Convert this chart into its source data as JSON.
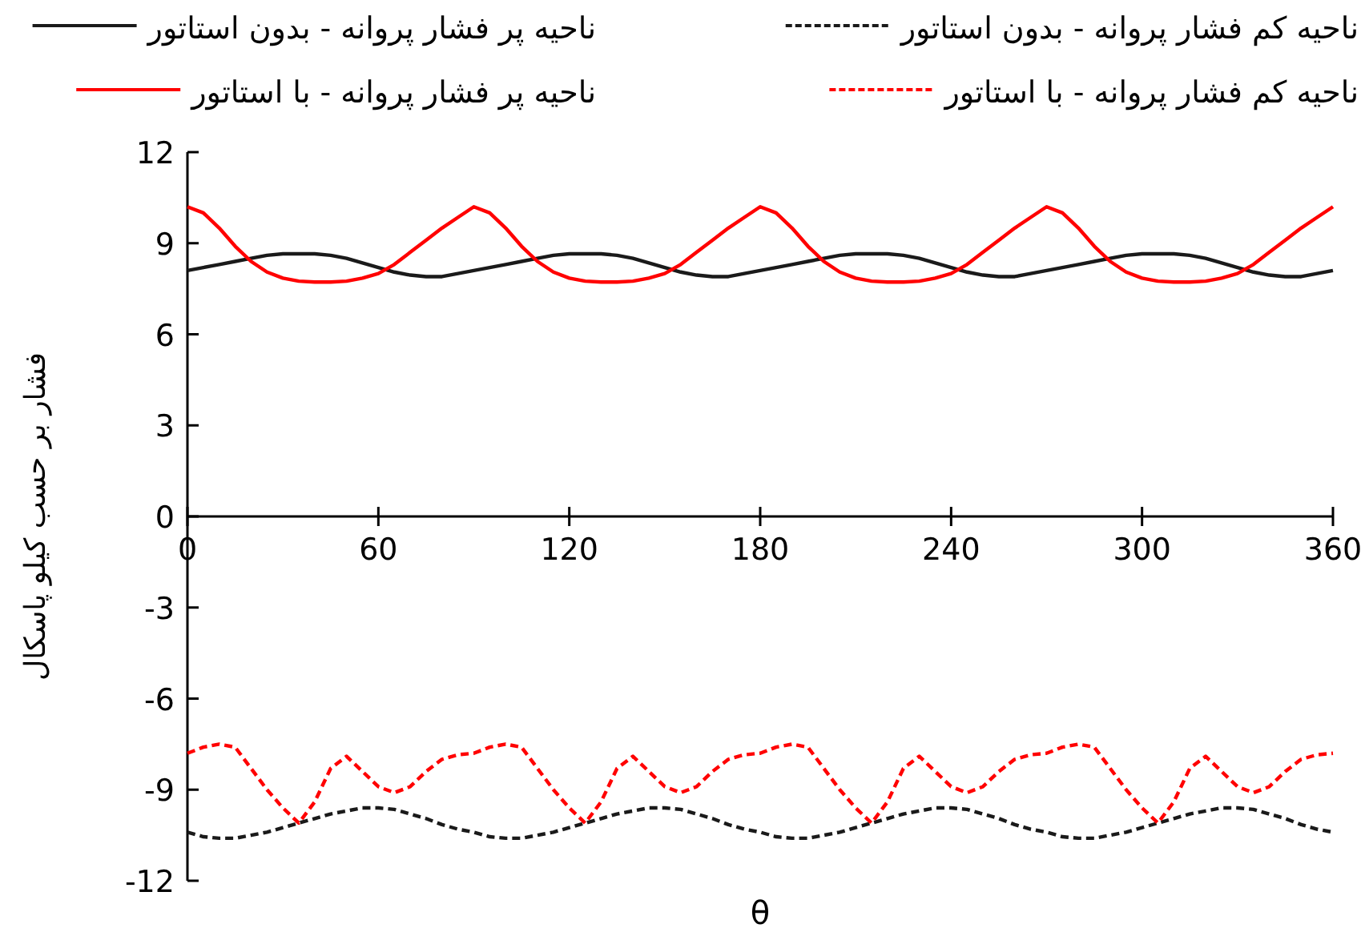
{
  "chart_data": {
    "type": "line",
    "xlabel": "θ",
    "ylabel": "فشار بر حسب کیلو پاسکال",
    "x": [
      0,
      5,
      10,
      15,
      20,
      25,
      30,
      35,
      40,
      45,
      50,
      55,
      60,
      65,
      70,
      75,
      80,
      85,
      90,
      95,
      100,
      105,
      110,
      115,
      120,
      125,
      130,
      135,
      140,
      145,
      150,
      155,
      160,
      165,
      170,
      175,
      180,
      185,
      190,
      195,
      200,
      205,
      210,
      215,
      220,
      225,
      230,
      235,
      240,
      245,
      250,
      255,
      260,
      265,
      270,
      275,
      280,
      285,
      290,
      295,
      300,
      305,
      310,
      315,
      320,
      325,
      330,
      335,
      340,
      345,
      350,
      355,
      360
    ],
    "series": [
      {
        "name": "ناحیه پر فشار پروانه - بدون استاتور",
        "color": "#1a1a1a",
        "line_style": "solid",
        "values": [
          8.1,
          8.2,
          8.3,
          8.4,
          8.5,
          8.6,
          8.65,
          8.65,
          8.65,
          8.6,
          8.5,
          8.35,
          8.2,
          8.05,
          7.95,
          7.9,
          7.9,
          8.0,
          8.1,
          8.2,
          8.3,
          8.4,
          8.5,
          8.6,
          8.65,
          8.65,
          8.65,
          8.6,
          8.5,
          8.35,
          8.2,
          8.05,
          7.95,
          7.9,
          7.9,
          8.0,
          8.1,
          8.2,
          8.3,
          8.4,
          8.5,
          8.6,
          8.65,
          8.65,
          8.65,
          8.6,
          8.5,
          8.35,
          8.2,
          8.05,
          7.95,
          7.9,
          7.9,
          8.0,
          8.1,
          8.2,
          8.3,
          8.4,
          8.5,
          8.6,
          8.65,
          8.65,
          8.65,
          8.6,
          8.5,
          8.35,
          8.2,
          8.05,
          7.95,
          7.9,
          7.9,
          8.0,
          8.1
        ]
      },
      {
        "name": "ناحیه کم فشار پروانه - بدون استاتور",
        "color": "#1a1a1a",
        "line_style": "dashed",
        "values": [
          -10.4,
          -10.55,
          -10.6,
          -10.6,
          -10.5,
          -10.4,
          -10.25,
          -10.1,
          -9.95,
          -9.8,
          -9.7,
          -9.6,
          -9.6,
          -9.65,
          -9.8,
          -9.95,
          -10.15,
          -10.3,
          -10.4,
          -10.55,
          -10.6,
          -10.6,
          -10.5,
          -10.4,
          -10.25,
          -10.1,
          -9.95,
          -9.8,
          -9.7,
          -9.6,
          -9.6,
          -9.65,
          -9.8,
          -9.95,
          -10.15,
          -10.3,
          -10.4,
          -10.55,
          -10.6,
          -10.6,
          -10.5,
          -10.4,
          -10.25,
          -10.1,
          -9.95,
          -9.8,
          -9.7,
          -9.6,
          -9.6,
          -9.65,
          -9.8,
          -9.95,
          -10.15,
          -10.3,
          -10.4,
          -10.55,
          -10.6,
          -10.6,
          -10.5,
          -10.4,
          -10.25,
          -10.1,
          -9.95,
          -9.8,
          -9.7,
          -9.6,
          -9.6,
          -9.65,
          -9.8,
          -9.95,
          -10.15,
          -10.3,
          -10.4
        ]
      },
      {
        "name": "ناحیه پر فشار پروانه - با استاتور",
        "color": "#ff0000",
        "line_style": "solid",
        "values": [
          10.2,
          10.0,
          9.5,
          8.9,
          8.4,
          8.05,
          7.85,
          7.75,
          7.72,
          7.72,
          7.75,
          7.85,
          8.0,
          8.3,
          8.7,
          9.1,
          9.5,
          9.85,
          10.2,
          10.0,
          9.5,
          8.9,
          8.4,
          8.05,
          7.85,
          7.75,
          7.72,
          7.72,
          7.75,
          7.85,
          8.0,
          8.3,
          8.7,
          9.1,
          9.5,
          9.85,
          10.2,
          10.0,
          9.5,
          8.9,
          8.4,
          8.05,
          7.85,
          7.75,
          7.72,
          7.72,
          7.75,
          7.85,
          8.0,
          8.3,
          8.7,
          9.1,
          9.5,
          9.85,
          10.2,
          10.0,
          9.5,
          8.9,
          8.4,
          8.05,
          7.85,
          7.75,
          7.72,
          7.72,
          7.75,
          7.85,
          8.0,
          8.3,
          8.7,
          9.1,
          9.5,
          9.85,
          10.2
        ]
      },
      {
        "name": "ناحیه کم فشار پروانه - با استاتور",
        "color": "#ff0000",
        "line_style": "dashed",
        "values": [
          -7.8,
          -7.6,
          -7.5,
          -7.6,
          -8.3,
          -9.0,
          -9.6,
          -10.1,
          -9.4,
          -8.3,
          -7.9,
          -8.4,
          -8.9,
          -9.1,
          -8.9,
          -8.4,
          -8.0,
          -7.85,
          -7.8,
          -7.6,
          -7.5,
          -7.6,
          -8.3,
          -9.0,
          -9.6,
          -10.1,
          -9.4,
          -8.3,
          -7.9,
          -8.4,
          -8.9,
          -9.1,
          -8.9,
          -8.4,
          -8.0,
          -7.85,
          -7.8,
          -7.6,
          -7.5,
          -7.6,
          -8.3,
          -9.0,
          -9.6,
          -10.1,
          -9.4,
          -8.3,
          -7.9,
          -8.4,
          -8.9,
          -9.1,
          -8.9,
          -8.4,
          -8.0,
          -7.85,
          -7.8,
          -7.6,
          -7.5,
          -7.6,
          -8.3,
          -9.0,
          -9.6,
          -10.1,
          -9.4,
          -8.3,
          -7.9,
          -8.4,
          -8.9,
          -9.1,
          -8.9,
          -8.4,
          -8.0,
          -7.85,
          -7.8
        ]
      }
    ],
    "xlim": [
      0,
      360
    ],
    "xticks": [
      0,
      60,
      120,
      180,
      240,
      300,
      360
    ],
    "ylim": [
      -12,
      12
    ],
    "yticks": [
      12,
      9,
      6,
      3,
      0,
      -3,
      -6,
      -9,
      -12
    ],
    "grid": false,
    "legend": "top",
    "marker": "none"
  }
}
